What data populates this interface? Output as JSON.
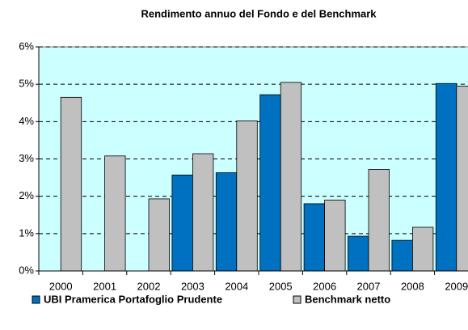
{
  "chart_data": {
    "type": "bar",
    "title": "Rendimento annuo del Fondo e del Benchmark",
    "categories": [
      "2000",
      "2001",
      "2002",
      "2003",
      "2004",
      "2005",
      "2006",
      "2007",
      "2008",
      "2009"
    ],
    "series": [
      {
        "name": "UBI Pramerica Portafoglio Prudente",
        "color": "#0070c0",
        "values": [
          null,
          null,
          null,
          2.57,
          2.63,
          4.72,
          1.8,
          0.93,
          0.82,
          5.02
        ]
      },
      {
        "name": "Benchmark netto",
        "color": "#c0c0c0",
        "values": [
          4.65,
          3.08,
          1.93,
          3.14,
          4.02,
          5.05,
          1.9,
          2.72,
          1.17,
          4.95
        ]
      }
    ],
    "ylim": [
      0,
      6
    ],
    "yticks": [
      {
        "value": 0,
        "label": "0%"
      },
      {
        "value": 1,
        "label": "1%"
      },
      {
        "value": 2,
        "label": "2%"
      },
      {
        "value": 3,
        "label": "3%"
      },
      {
        "value": 4,
        "label": "4%"
      },
      {
        "value": 5,
        "label": "5%"
      },
      {
        "value": 6,
        "label": "6%"
      }
    ],
    "grid": true,
    "background": "#ccffff",
    "legend": "bottom"
  }
}
